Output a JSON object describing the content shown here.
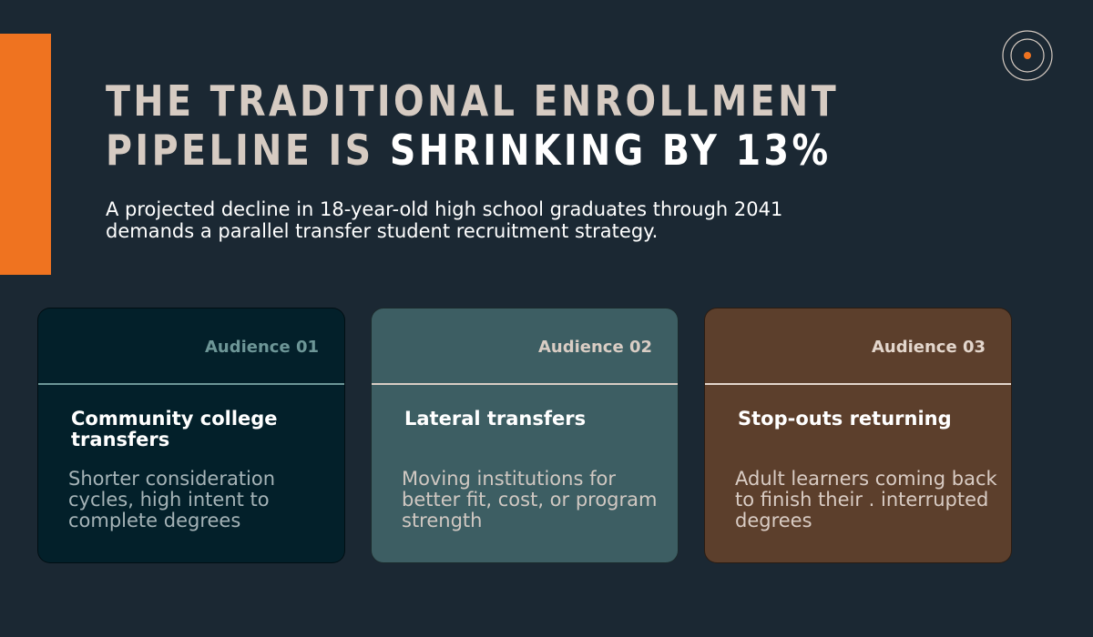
{
  "header": {
    "title_part1": "THE TRADITIONAL ENROLLMENT PIPELINE IS ",
    "title_highlight": "SHRINKING BY 13%",
    "subtitle": "A projected decline in 18-year-old high school graduates through 2041 demands a parallel transfer student recruitment strategy."
  },
  "logo": {
    "icon": "target-icon",
    "accent": "#ef7320"
  },
  "colors": {
    "background": "#1b2833",
    "accent": "#ef7320",
    "card1": "#03202a",
    "card2": "#3d5e63",
    "card3": "#5c3f2c"
  },
  "cards": [
    {
      "tag": "Audience 01",
      "heading": "Community college transfers",
      "description": "Shorter consideration cycles, high intent to complete degrees"
    },
    {
      "tag": "Audience 02",
      "heading": "Lateral transfers",
      "description": "Moving institutions for better fit, cost, or program strength"
    },
    {
      "tag": "Audience 03",
      "heading": "Stop-outs returning",
      "description": "Adult learners coming back to finish their . interrupted degrees"
    }
  ]
}
